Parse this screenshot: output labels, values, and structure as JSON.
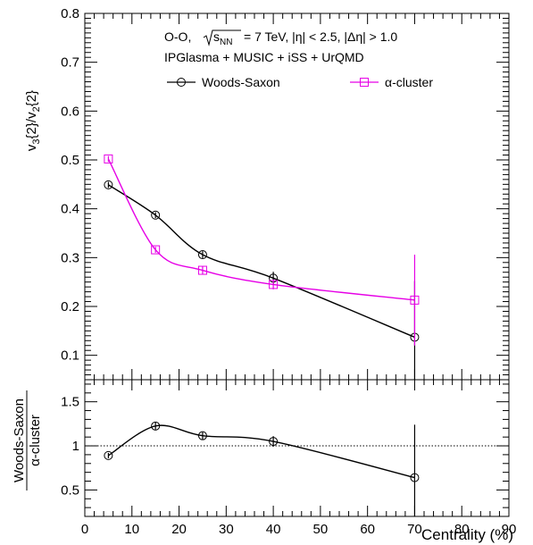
{
  "chart_data": [
    {
      "type": "line",
      "panel": "top",
      "annotations": {
        "line1": "O-O,",
        "sqrt_label": "s",
        "sqrt_sub": "NN",
        "line1_rest": "= 7 TeV, |η| < 2.5, |Δη| > 1.0",
        "line2": "IPGlasma +  MUSIC + iSS + UrQMD"
      },
      "ylabel": {
        "main": "v",
        "sub1": "3",
        "mid": "{2}/v",
        "sub2": "2",
        "end": "{2}"
      },
      "xlim": [
        0,
        90
      ],
      "ylim": [
        0.05,
        0.8
      ],
      "yticks": [
        0.1,
        0.2,
        0.3,
        0.4,
        0.5,
        0.6,
        0.7,
        0.8
      ],
      "ytick_labels": [
        "0.1",
        "0.2",
        "0.3",
        "0.4",
        "0.5",
        "0.6",
        "0.7",
        "0.8"
      ],
      "legend_placement": "top",
      "grid": false,
      "series": [
        {
          "name": "Woods-Saxon",
          "color": "#000000",
          "marker": "circle",
          "x": [
            5,
            15,
            25,
            40,
            70
          ],
          "y": [
            0.449,
            0.387,
            0.306,
            0.258,
            0.137
          ],
          "yerr": [
            0.006,
            0.006,
            0.007,
            0.013,
            0.115
          ]
        },
        {
          "name": "α-cluster",
          "color": "#e600e6",
          "marker": "square",
          "x": [
            5,
            15,
            25,
            40,
            70
          ],
          "y": [
            0.502,
            0.316,
            0.274,
            0.245,
            0.213
          ],
          "yerr": [
            0.006,
            0.006,
            0.008,
            0.01,
            0.093
          ]
        }
      ]
    },
    {
      "type": "line",
      "panel": "bottom",
      "ylabel_top": "Woods-Saxon",
      "ylabel_bottom": "α-cluster",
      "xlabel": "Centrality (%)",
      "xlim": [
        0,
        90
      ],
      "ylim": [
        0.2,
        1.75
      ],
      "xticks": [
        0,
        10,
        20,
        30,
        40,
        50,
        60,
        70,
        80,
        90
      ],
      "xtick_labels": [
        "0",
        "10",
        "20",
        "30",
        "40",
        "50",
        "60",
        "70",
        "80",
        "90"
      ],
      "yticks": [
        0.5,
        1,
        1.5
      ],
      "ytick_labels": [
        "0.5",
        "1",
        "1.5"
      ],
      "reference_line": 1,
      "grid": false,
      "series": [
        {
          "color": "#000000",
          "marker": "circle",
          "x": [
            5,
            15,
            25,
            40,
            70
          ],
          "y": [
            0.89,
            1.225,
            1.115,
            1.05,
            0.64
          ],
          "yerr": [
            0.03,
            0.04,
            0.04,
            0.06,
            0.6
          ]
        }
      ]
    }
  ]
}
